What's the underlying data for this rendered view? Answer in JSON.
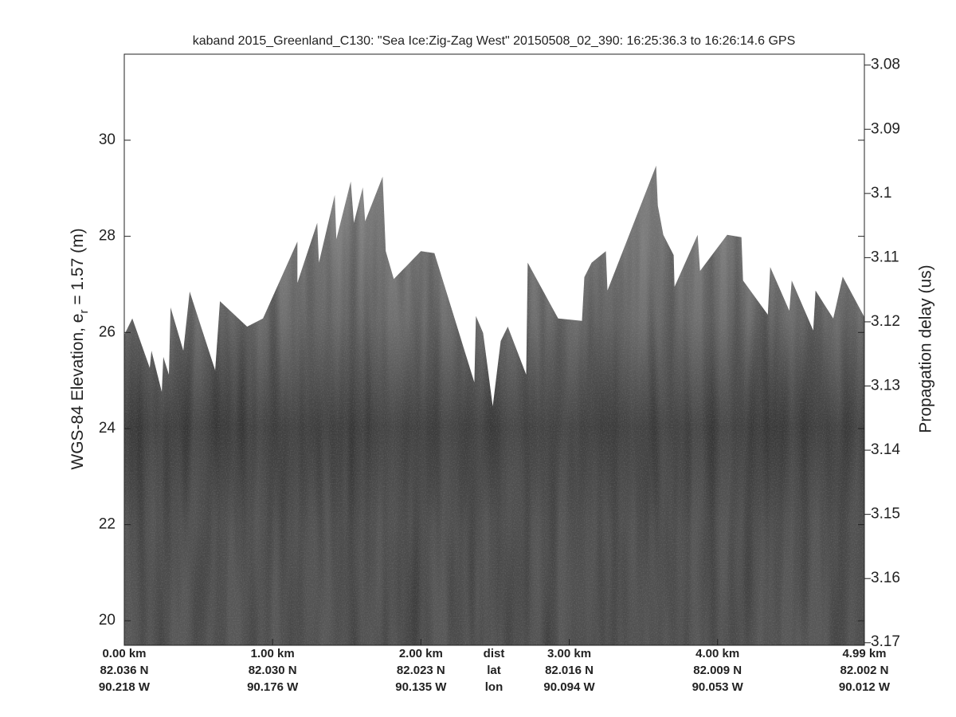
{
  "chart_data": {
    "type": "echogram",
    "title": "kaband 2015_Greenland_C130: \"Sea Ice:Zig-Zag West\"  20150508_02_390: 16:25:36.3 to 16:26:14.6 GPS",
    "ylabel": [
      "WGS-84 Elevation, e",
      "r",
      " = 1.57 (m)"
    ],
    "y2label": "Propagation delay (us)",
    "xlim": [
      0,
      4.99
    ],
    "xticks": [
      {
        "value": 0,
        "label": "0.00 km"
      },
      {
        "value": 1,
        "label": "1.00 km"
      },
      {
        "value": 2,
        "label": "2.00 km"
      },
      {
        "value": 3,
        "label": "3.00 km"
      },
      {
        "value": 4,
        "label": "4.00 km"
      },
      {
        "value": 4.99,
        "label": "4.99 km"
      }
    ],
    "lat_labels": [
      "82.036 N",
      "82.030 N",
      "82.023 N",
      "82.016 N",
      "82.009 N",
      "82.002 N"
    ],
    "lon_labels": [
      "90.218 W",
      "90.176 W",
      "90.135 W",
      "90.094 W",
      "90.053 W",
      "90.012 W"
    ],
    "row_labels": [
      "dist",
      "lat",
      "lon"
    ],
    "ylim": [
      19.49,
      31.79
    ],
    "yticks": [
      20,
      22,
      24,
      26,
      28,
      30
    ],
    "y2lim": [
      3.1704,
      3.0783
    ],
    "y2ticks": [
      3.08,
      3.09,
      3.1,
      3.11,
      3.12,
      3.13,
      3.14,
      3.15,
      3.16,
      3.17
    ],
    "x": [
      0,
      0.054,
      0.172,
      0.183,
      0.253,
      0.263,
      0.301,
      0.312,
      0.398,
      0.441,
      0.613,
      0.645,
      0.828,
      0.935,
      1.167,
      1.167,
      1.301,
      1.312,
      1.419,
      1.43,
      1.527,
      1.548,
      1.608,
      1.624,
      1.742,
      1.763,
      1.817,
      2.0,
      2.091,
      2.36,
      2.371,
      2.419,
      2.484,
      2.538,
      2.586,
      2.71,
      2.72,
      2.925,
      3.086,
      3.102,
      3.151,
      3.247,
      3.258,
      3.586,
      3.597,
      3.634,
      3.704,
      3.71,
      3.866,
      3.882,
      4.065,
      4.161,
      4.172,
      4.339,
      4.355,
      4.484,
      4.5,
      4.645,
      4.661,
      4.78,
      4.844,
      4.99
    ],
    "values": [
      25.95,
      26.29,
      25.26,
      25.62,
      24.76,
      25.49,
      25.12,
      26.52,
      25.62,
      26.85,
      25.21,
      26.65,
      26.12,
      26.29,
      27.89,
      27.03,
      28.28,
      27.45,
      28.86,
      27.94,
      29.14,
      28.28,
      29.02,
      28.31,
      29.24,
      27.69,
      27.11,
      27.69,
      27.65,
      24.96,
      26.34,
      25.99,
      24.46,
      25.82,
      26.12,
      25.12,
      27.45,
      26.29,
      26.24,
      27.15,
      27.45,
      27.69,
      26.87,
      29.47,
      28.64,
      28.03,
      27.61,
      26.95,
      28.03,
      27.28,
      28.03,
      27.98,
      27.08,
      26.37,
      27.36,
      26.45,
      27.08,
      26.04,
      26.87,
      26.29,
      27.16,
      26.32
    ],
    "grid": false
  }
}
